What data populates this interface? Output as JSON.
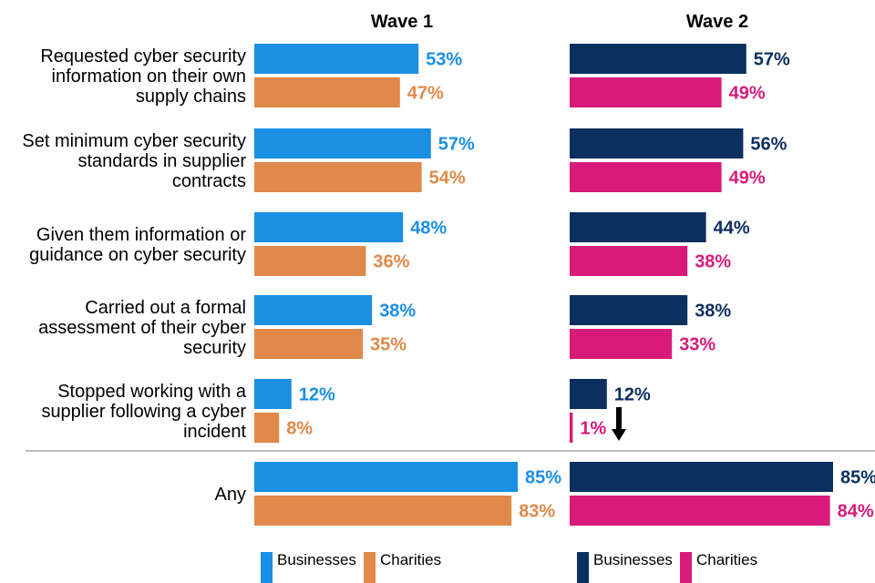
{
  "chart_data": {
    "type": "bar",
    "orientation": "horizontal",
    "categories": [
      "Requested cyber security information on their own supply chains",
      "Set minimum cyber security standards in supplier contracts",
      "Given them information or guidance on cyber security",
      "Carried out a formal assessment of their cyber security",
      "Stopped working with a supplier following a cyber incident",
      "Any"
    ],
    "category_lines": [
      [
        "Requested cyber security",
        "information on their own",
        "supply chains"
      ],
      [
        "Set minimum cyber security",
        "standards in supplier",
        "contracts"
      ],
      [
        "Given them information or",
        "guidance on cyber security"
      ],
      [
        "Carried out a formal",
        "assessment of their cyber",
        "security"
      ],
      [
        "Stopped working with a",
        "supplier following a cyber",
        "incident"
      ],
      [
        "Any"
      ]
    ],
    "panels": [
      {
        "title": "Wave 1",
        "series": [
          {
            "name": "Businesses",
            "color": "#1b8fe3",
            "values": [
              53,
              57,
              48,
              38,
              12,
              85
            ]
          },
          {
            "name": "Charities",
            "color": "#e0894a",
            "values": [
              47,
              54,
              36,
              35,
              8,
              83
            ]
          }
        ]
      },
      {
        "title": "Wave 2",
        "series": [
          {
            "name": "Businesses",
            "color": "#0b2f5e",
            "values": [
              57,
              56,
              44,
              38,
              12,
              85
            ]
          },
          {
            "name": "Charities",
            "color": "#d81b7b",
            "values": [
              49,
              49,
              38,
              33,
              1,
              84
            ]
          }
        ]
      }
    ],
    "value_suffix": "%",
    "annotation": "down-arrow-significant-decrease",
    "xlim": [
      0,
      100
    ]
  }
}
